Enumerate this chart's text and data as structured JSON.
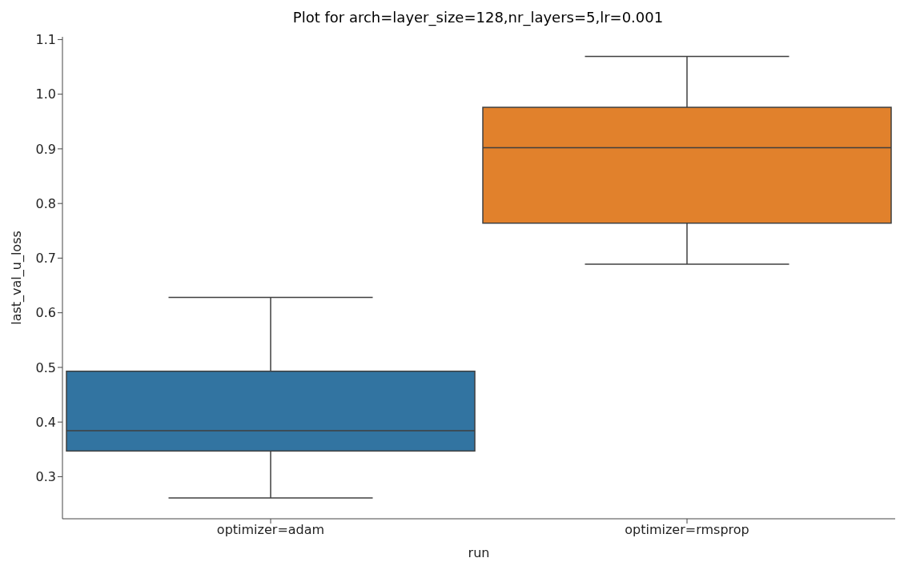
{
  "chart_data": {
    "type": "box",
    "title": "Plot for arch=layer_size=128,nr_layers=5,lr=0.001",
    "xlabel": "run",
    "ylabel": "last_val_u_loss",
    "categories": [
      "optimizer=adam",
      "optimizer=rmsprop"
    ],
    "colors": [
      "#3274a1",
      "#e1812c"
    ],
    "boxes": [
      {
        "low": 0.261,
        "q1": 0.347,
        "median": 0.384,
        "q3": 0.493,
        "high": 0.628
      },
      {
        "low": 0.689,
        "q1": 0.764,
        "median": 0.902,
        "q3": 0.976,
        "high": 1.069
      }
    ],
    "ylim": [
      0.223,
      1.105
    ],
    "yticks": [
      0.3,
      0.4,
      0.5,
      0.6,
      0.7,
      0.8,
      0.9,
      {
        "value": 1.0,
        "label": "1.0"
      },
      1.1
    ]
  }
}
